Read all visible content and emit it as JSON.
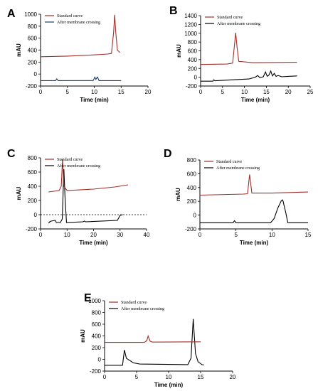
{
  "figure": {
    "colors": {
      "standard": "#a0302a",
      "after_A": "#1c3f6a",
      "after": "#000000",
      "axis": "#000000",
      "dotted": "#000000"
    },
    "panels": [
      {
        "letter": "A",
        "xlabel": "Time (min)",
        "ylabel": "mAU",
        "xlim": [
          0,
          20
        ],
        "ylim": [
          -200,
          1000
        ],
        "xticks": [
          0,
          5,
          10,
          15,
          20
        ],
        "yticks": [
          -200,
          0,
          200,
          400,
          600,
          800,
          1000
        ],
        "legend": [
          "Standard curve",
          "After membrane crossing"
        ],
        "after_color_key": "after_A",
        "standard": [
          [
            0,
            290
          ],
          [
            5,
            300
          ],
          [
            10,
            320
          ],
          [
            12.5,
            335
          ],
          [
            13.2,
            345
          ],
          [
            13.6,
            700
          ],
          [
            13.8,
            990
          ],
          [
            14.0,
            700
          ],
          [
            14.3,
            400
          ],
          [
            14.8,
            360
          ]
        ],
        "after": [
          [
            0,
            -110
          ],
          [
            2.8,
            -110
          ],
          [
            3.0,
            -80
          ],
          [
            3.3,
            -110
          ],
          [
            9.8,
            -108
          ],
          [
            10.1,
            -50
          ],
          [
            10.3,
            -90
          ],
          [
            10.6,
            -50
          ],
          [
            10.9,
            -110
          ],
          [
            15,
            -110
          ]
        ]
      },
      {
        "letter": "B",
        "xlabel": "Time (min)",
        "ylabel": "mAU",
        "xlim": [
          0,
          25
        ],
        "ylim": [
          -200,
          1400
        ],
        "xticks": [
          0,
          5,
          10,
          15,
          20,
          25
        ],
        "yticks": [
          -200,
          0,
          200,
          400,
          600,
          800,
          1000,
          1200,
          1400
        ],
        "legend": [
          "Standard curve",
          "After membrane crossing"
        ],
        "after_color_key": "after",
        "standard": [
          [
            0,
            290
          ],
          [
            6,
            300
          ],
          [
            7.3,
            320
          ],
          [
            7.7,
            700
          ],
          [
            8.0,
            1010
          ],
          [
            8.3,
            700
          ],
          [
            8.7,
            360
          ],
          [
            12,
            330
          ],
          [
            22,
            340
          ]
        ],
        "after": [
          [
            0,
            -90
          ],
          [
            2.8,
            -90
          ],
          [
            3.0,
            -60
          ],
          [
            3.3,
            -80
          ],
          [
            11,
            -40
          ],
          [
            12.5,
            0
          ],
          [
            13,
            40
          ],
          [
            13.5,
            -10
          ],
          [
            14.3,
            10
          ],
          [
            14.8,
            120
          ],
          [
            15.2,
            20
          ],
          [
            15.6,
            50
          ],
          [
            16,
            140
          ],
          [
            16.4,
            30
          ],
          [
            16.8,
            90
          ],
          [
            17.2,
            20
          ],
          [
            17.7,
            40
          ],
          [
            18.5,
            10
          ],
          [
            20,
            20
          ],
          [
            22,
            30
          ]
        ]
      },
      {
        "letter": "C",
        "xlabel": "Time (min)",
        "ylabel": "mAU",
        "xlim": [
          0,
          40
        ],
        "ylim": [
          -200,
          800
        ],
        "xticks": [
          0,
          10,
          20,
          30,
          40
        ],
        "yticks": [
          -200,
          0,
          200,
          400,
          600,
          800
        ],
        "legend": [
          "Standard curve",
          "After membrane crossing"
        ],
        "after_color_key": "after",
        "dotted_zero": true,
        "standard": [
          [
            3,
            320
          ],
          [
            5,
            330
          ],
          [
            7,
            340
          ],
          [
            7.8,
            400
          ],
          [
            8.3,
            780
          ],
          [
            8.8,
            400
          ],
          [
            10,
            340
          ],
          [
            20,
            360
          ],
          [
            28,
            390
          ],
          [
            33,
            420
          ]
        ],
        "after": [
          [
            3,
            -120
          ],
          [
            3.5,
            -100
          ],
          [
            4,
            -90
          ],
          [
            5.5,
            -80
          ],
          [
            6,
            -110
          ],
          [
            7.5,
            -110
          ],
          [
            8.2,
            -60
          ],
          [
            8.8,
            640
          ],
          [
            9.3,
            200
          ],
          [
            9.8,
            -110
          ],
          [
            16,
            -100
          ],
          [
            16.5,
            -90
          ],
          [
            17,
            -100
          ],
          [
            29,
            -80
          ],
          [
            30,
            -10
          ],
          [
            31,
            0
          ]
        ]
      },
      {
        "letter": "D",
        "xlabel": "Time (min)",
        "ylabel": "mAU",
        "xlim": [
          0,
          15
        ],
        "ylim": [
          -200,
          800
        ],
        "xticks": [
          0,
          5,
          10,
          15
        ],
        "yticks": [
          -200,
          0,
          200,
          400,
          600,
          800
        ],
        "legend": [
          "Standard curve",
          "After membrane crossing"
        ],
        "after_color_key": "after",
        "standard": [
          [
            0,
            290
          ],
          [
            6,
            305
          ],
          [
            6.6,
            310
          ],
          [
            6.9,
            590
          ],
          [
            7.2,
            320
          ],
          [
            10,
            320
          ],
          [
            15,
            335
          ]
        ],
        "after": [
          [
            0,
            -110
          ],
          [
            4.6,
            -110
          ],
          [
            4.8,
            -80
          ],
          [
            5.0,
            -110
          ],
          [
            9.8,
            -110
          ],
          [
            10.3,
            -50
          ],
          [
            10.8,
            100
          ],
          [
            11.3,
            210
          ],
          [
            11.5,
            220
          ],
          [
            11.9,
            40
          ],
          [
            12.2,
            -110
          ],
          [
            15,
            -110
          ]
        ]
      },
      {
        "letter": "E",
        "xlabel": "Time (min)",
        "ylabel": "mAU",
        "xlim": [
          0,
          20
        ],
        "ylim": [
          -200,
          1000
        ],
        "xticks": [
          0,
          5,
          10,
          15,
          20
        ],
        "yticks": [
          -200,
          0,
          200,
          400,
          600,
          800,
          1000
        ],
        "legend": [
          "Standard curve",
          "After membrane crossing"
        ],
        "after_color_key": "after",
        "standard": [
          [
            0,
            290
          ],
          [
            6.2,
            290
          ],
          [
            6.6,
            320
          ],
          [
            6.8,
            400
          ],
          [
            7.1,
            310
          ],
          [
            7.5,
            295
          ],
          [
            15,
            300
          ]
        ],
        "after": [
          [
            0,
            -100
          ],
          [
            2.8,
            -100
          ],
          [
            3.1,
            160
          ],
          [
            3.4,
            20
          ],
          [
            3.8,
            -10
          ],
          [
            4.5,
            -60
          ],
          [
            5.5,
            -80
          ],
          [
            13,
            -90
          ],
          [
            13.5,
            20
          ],
          [
            13.85,
            690
          ],
          [
            14.2,
            100
          ],
          [
            14.6,
            -40
          ],
          [
            15.2,
            -90
          ],
          [
            15.5,
            -95
          ]
        ]
      }
    ]
  }
}
